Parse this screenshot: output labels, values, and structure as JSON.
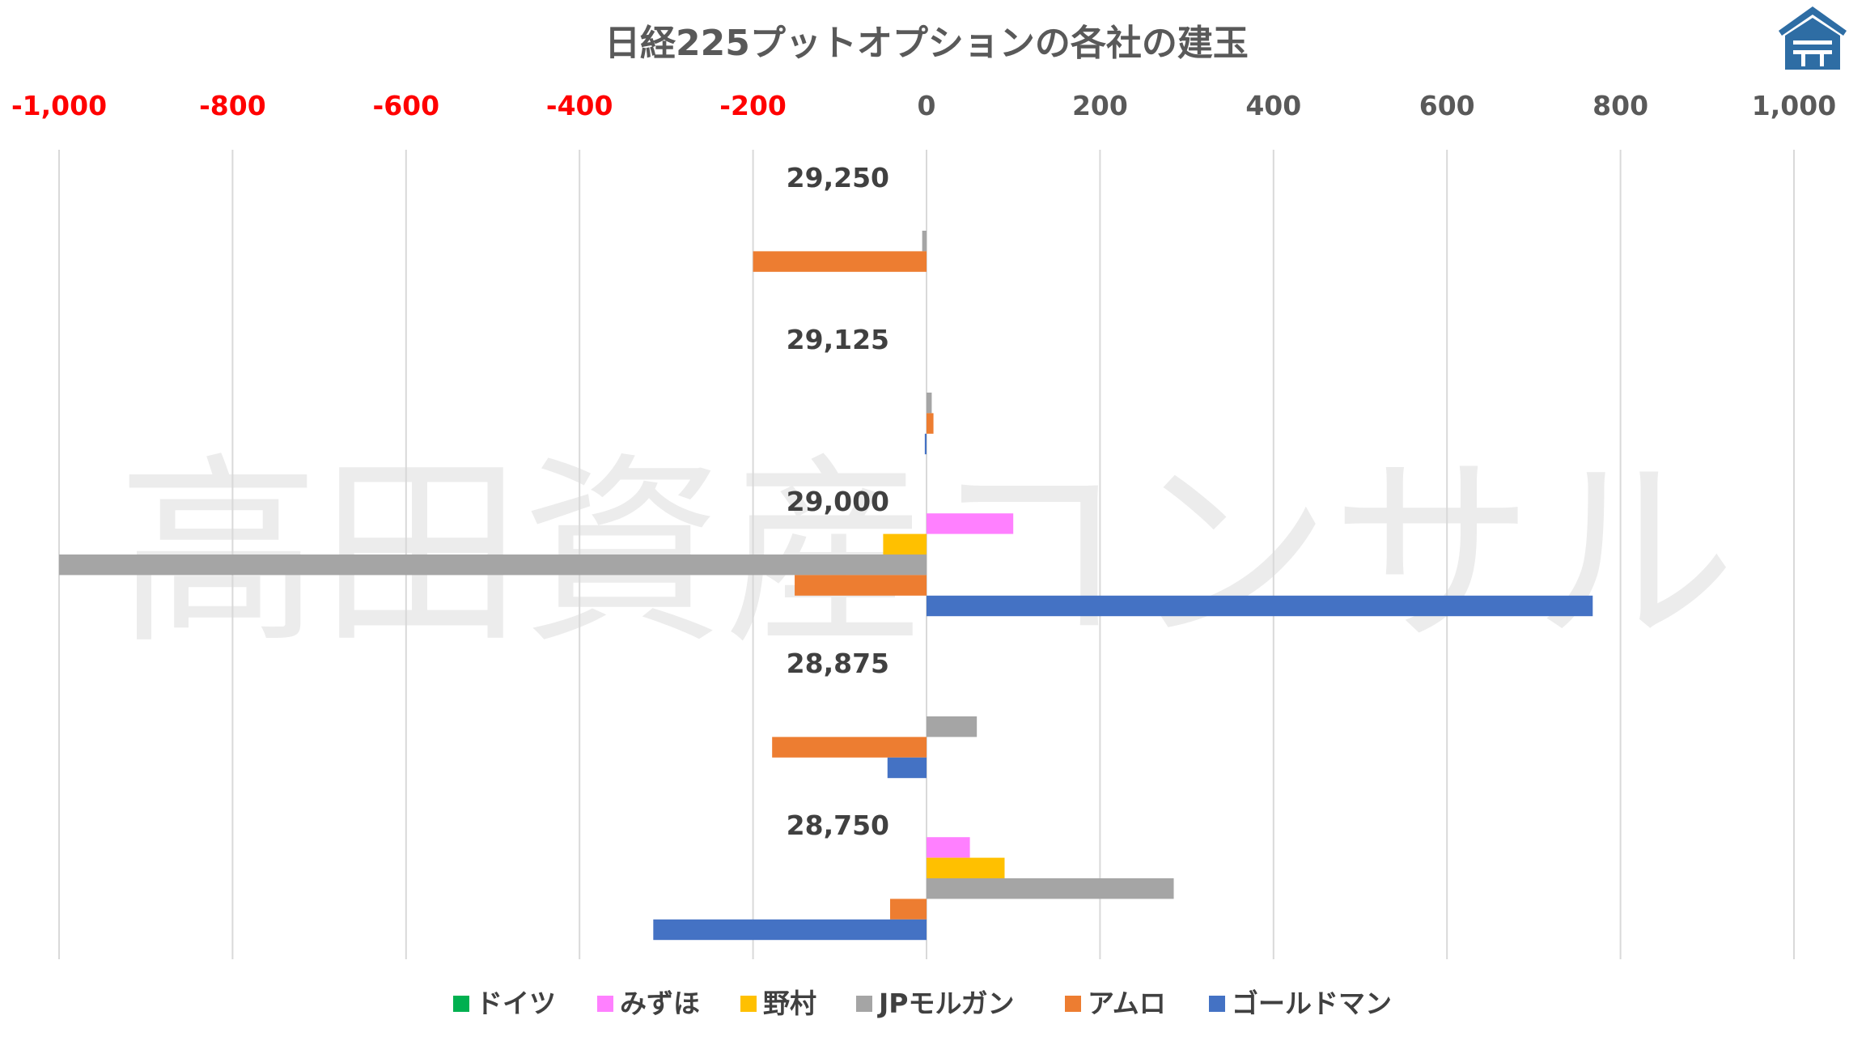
{
  "chart_data": {
    "type": "bar",
    "orientation": "horizontal",
    "title": "日経225プットオプションの各社の建玉",
    "watermark": "高田資産コンサル",
    "logo": "shield-logo",
    "xlim": [
      -1000,
      1000
    ],
    "xticks": [
      -1000,
      -800,
      -600,
      -400,
      -200,
      0,
      200,
      400,
      600,
      800,
      1000
    ],
    "xtick_labels": [
      "-1,000",
      "-800",
      "-600",
      "-400",
      "-200",
      "0",
      "200",
      "400",
      "600",
      "800",
      "1,000"
    ],
    "negative_tick_color": "#ff0000",
    "positive_tick_color": "#595959",
    "grid": true,
    "legend_position": "bottom",
    "categories": [
      "29,250",
      "29,125",
      "29,000",
      "28,875",
      "28,750"
    ],
    "series": [
      {
        "name": "ドイツ",
        "color": "#00b050",
        "values": [
          0,
          0,
          0,
          0,
          0
        ]
      },
      {
        "name": "みずほ",
        "color": "#ff80ff",
        "values": [
          0,
          0,
          100,
          0,
          50
        ]
      },
      {
        "name": "野村",
        "color": "#ffc000",
        "values": [
          0,
          0,
          -50,
          0,
          90
        ]
      },
      {
        "name": "JPモルガン",
        "color": "#a5a5a5",
        "values": [
          -5,
          6,
          -1000,
          58,
          285
        ]
      },
      {
        "name": "アムロ",
        "color": "#ed7d31",
        "values": [
          -200,
          8,
          -152,
          -178,
          -42
        ]
      },
      {
        "name": "ゴールドマン",
        "color": "#4472c4",
        "values": [
          0,
          -2,
          768,
          -45,
          -315
        ]
      }
    ]
  }
}
